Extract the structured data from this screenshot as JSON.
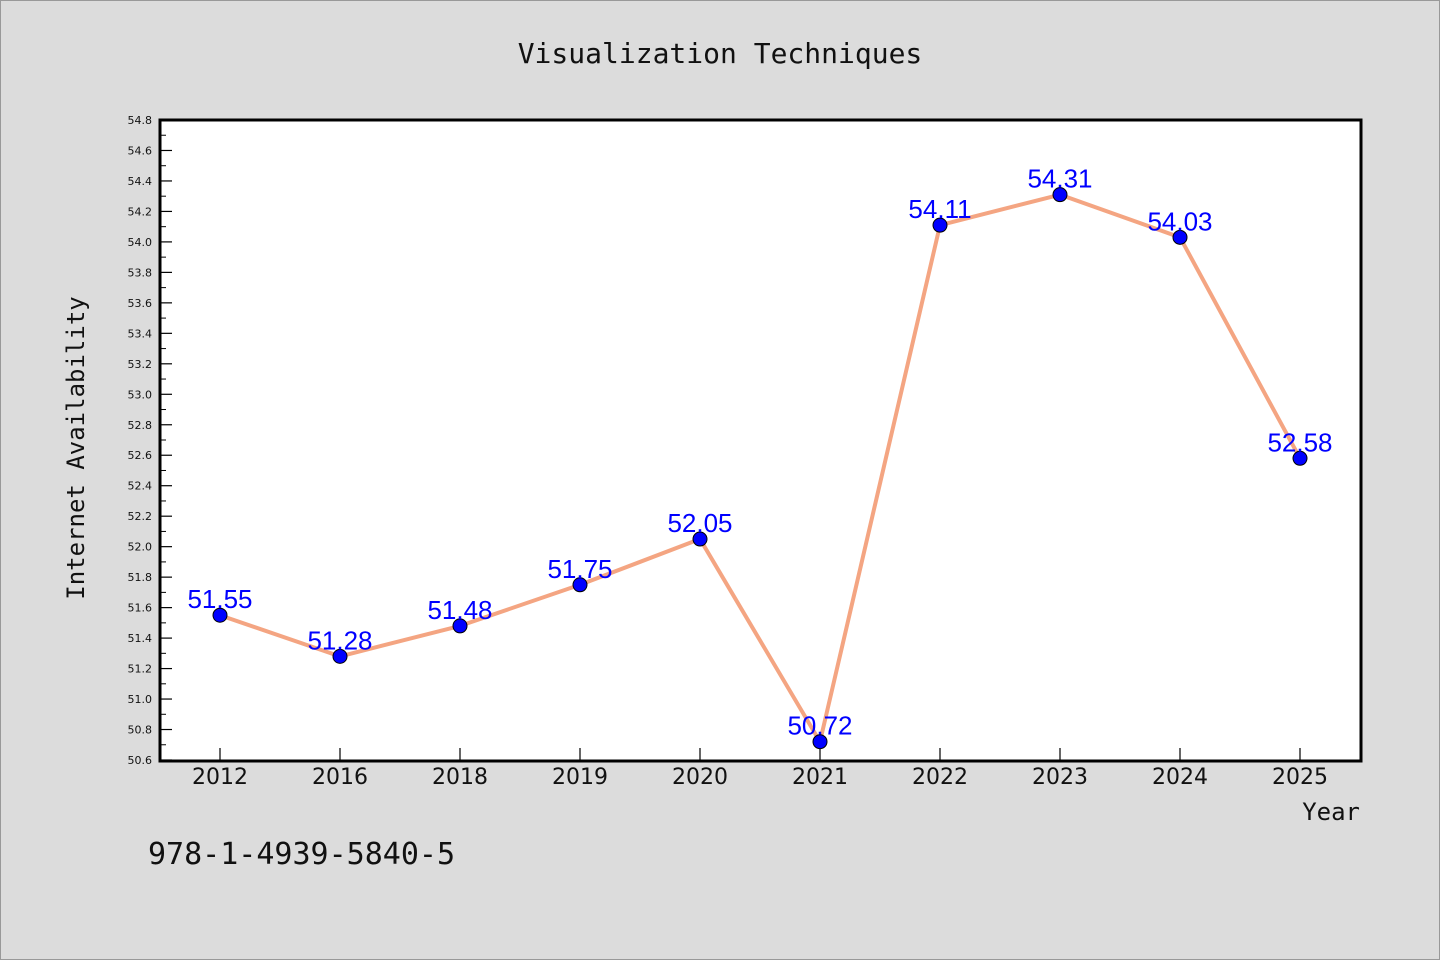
{
  "chart_data": {
    "type": "line",
    "title": "Visualization Techniques",
    "xlabel": "Year",
    "ylabel": "Internet Availability",
    "categories": [
      "2012",
      "2016",
      "2018",
      "2019",
      "2020",
      "2021",
      "2022",
      "2023",
      "2024",
      "2025"
    ],
    "series": [
      {
        "values": [
          51.55,
          51.28,
          51.48,
          51.75,
          52.05,
          50.72,
          54.11,
          54.31,
          54.03,
          52.58
        ],
        "data_labels": [
          "51.55",
          "51.28",
          "51.48",
          "51.75",
          "52.05",
          "50.72",
          "54.11",
          "54.31",
          "54.03",
          "52.58"
        ]
      }
    ],
    "ylim": [
      50.6,
      54.8
    ],
    "yticks": [
      "50.6",
      "50.8",
      "51.0",
      "51.2",
      "51.4",
      "51.6",
      "51.8",
      "52.0",
      "52.2",
      "52.4",
      "52.6",
      "52.8",
      "53.0",
      "53.2",
      "53.4",
      "53.6",
      "53.8",
      "54.0",
      "54.2",
      "54.4",
      "54.6",
      "54.8"
    ],
    "grid": false,
    "colors": {
      "line": "#f4a582",
      "marker": "#0000ff",
      "label": "#0000ff",
      "background": "#dcdcdc",
      "plot_background": "#ffffff"
    }
  },
  "annotation": {
    "isbn": "978-1-4939-5840-5"
  }
}
